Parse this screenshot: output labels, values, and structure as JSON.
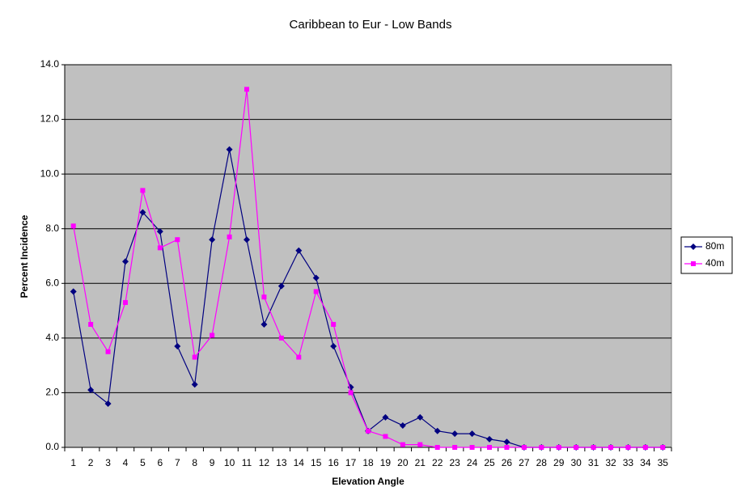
{
  "chart_data": {
    "type": "line",
    "title": "Caribbean to Eur - Low Bands",
    "x_label": "Elevation Angle",
    "y_label": "Percent Incidence",
    "categories": [
      "1",
      "2",
      "3",
      "4",
      "5",
      "6",
      "7",
      "8",
      "9",
      "10",
      "11",
      "12",
      "13",
      "14",
      "15",
      "16",
      "17",
      "18",
      "19",
      "20",
      "21",
      "22",
      "23",
      "24",
      "25",
      "26",
      "27",
      "28",
      "29",
      "30",
      "31",
      "32",
      "33",
      "34",
      "35"
    ],
    "series": [
      {
        "name": "80m",
        "color": "#000080",
        "marker": "diamond",
        "values": [
          5.7,
          2.1,
          1.6,
          6.8,
          8.6,
          7.9,
          3.7,
          2.3,
          7.6,
          10.9,
          7.6,
          4.5,
          5.9,
          7.2,
          6.2,
          3.7,
          2.2,
          0.6,
          1.1,
          0.8,
          1.1,
          0.6,
          0.5,
          0.5,
          0.3,
          0.2,
          0,
          0,
          0,
          0,
          0,
          0,
          0,
          0,
          0
        ]
      },
      {
        "name": "40m",
        "color": "#ff00ff",
        "marker": "square",
        "values": [
          8.1,
          4.5,
          3.5,
          5.3,
          9.4,
          7.3,
          7.6,
          3.3,
          4.1,
          7.7,
          13.1,
          5.5,
          4.0,
          3.3,
          5.7,
          4.5,
          2.0,
          0.6,
          0.4,
          0.1,
          0.1,
          0,
          0,
          0,
          0,
          0,
          0,
          0,
          0,
          0,
          0,
          0,
          0,
          0,
          0
        ]
      }
    ],
    "ylim": [
      0,
      14
    ],
    "yticks": [
      {
        "value": 0,
        "label": "0.0"
      },
      {
        "value": 2,
        "label": "2.0"
      },
      {
        "value": 4,
        "label": "4.0"
      },
      {
        "value": 6,
        "label": "6.0"
      },
      {
        "value": 8,
        "label": "8.0"
      },
      {
        "value": 10,
        "label": "10.0"
      },
      {
        "value": 12,
        "label": "12.0"
      },
      {
        "value": 14,
        "label": "14.0"
      }
    ],
    "grid": true,
    "plot_background": "#c0c0c0",
    "legend": "right"
  }
}
